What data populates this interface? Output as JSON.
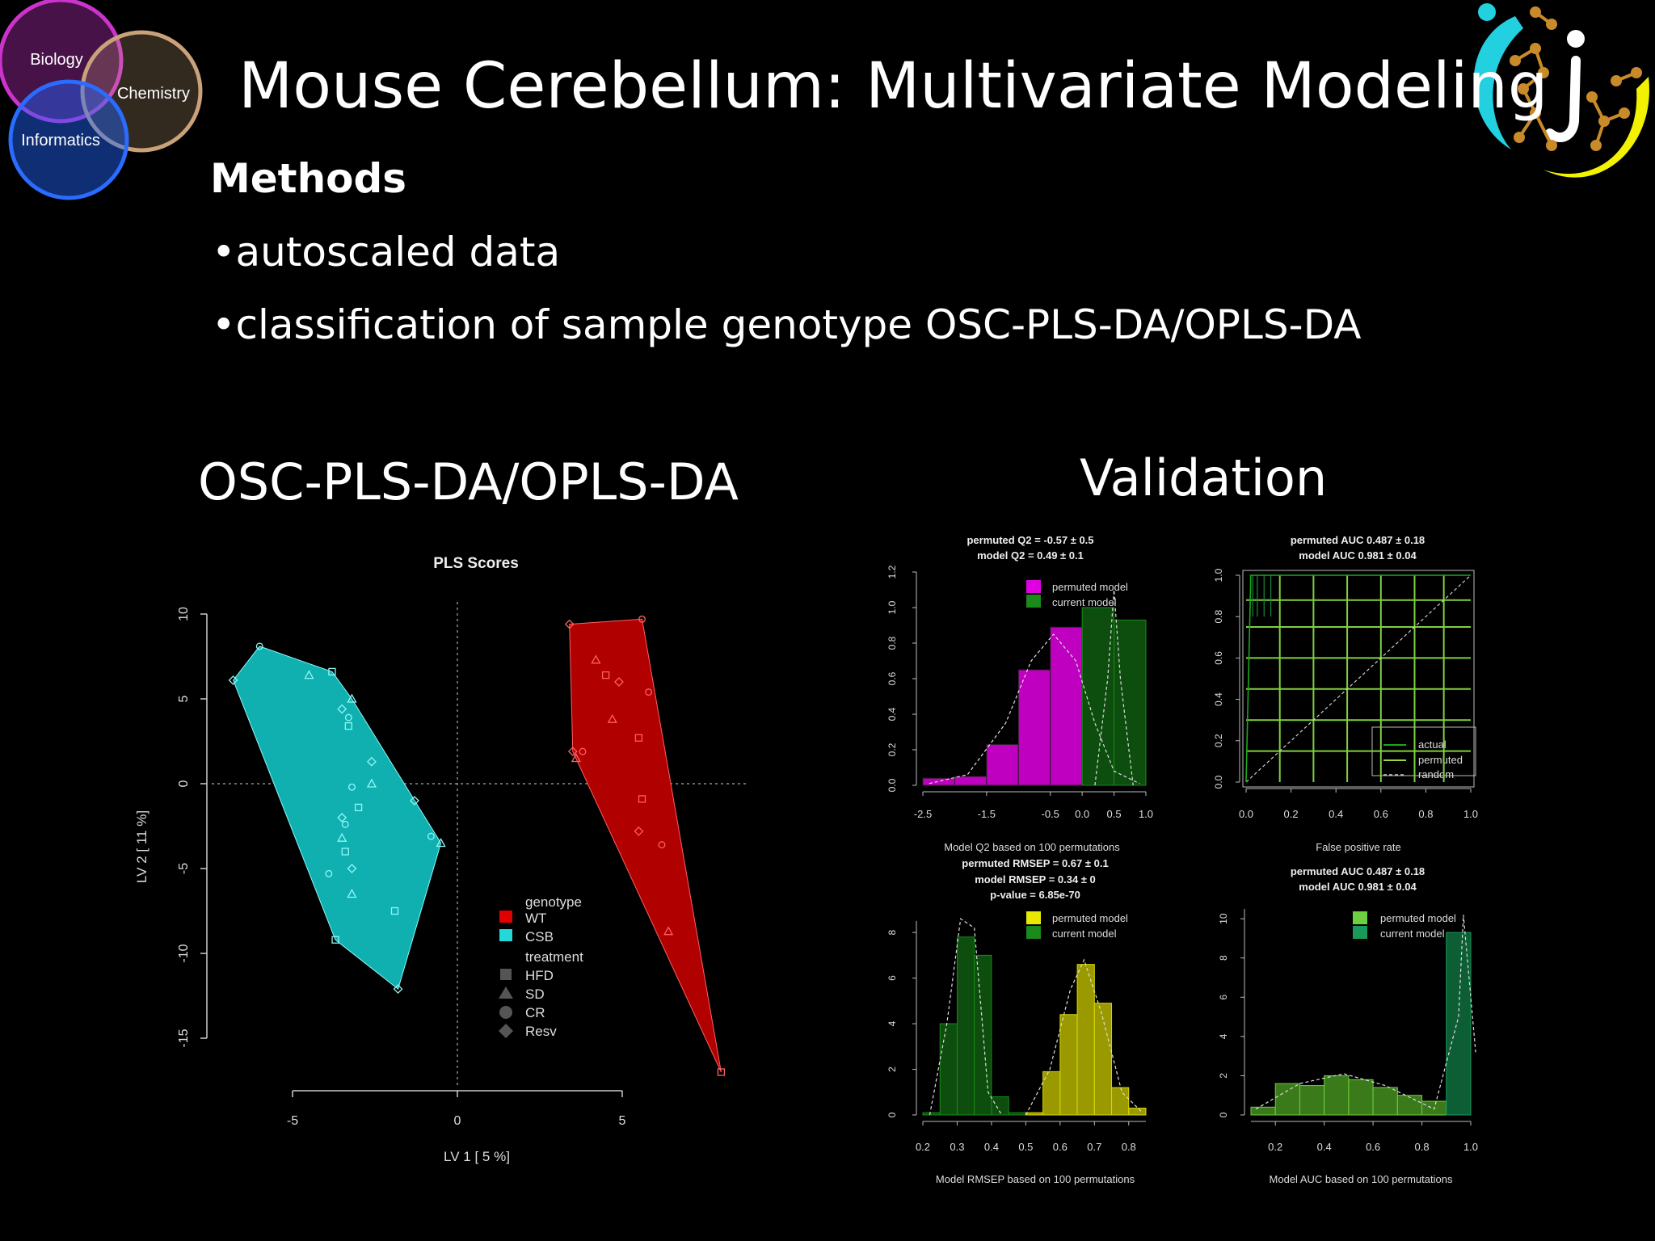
{
  "slide": {
    "title": "Mouse Cerebellum: Multivariate Modeling",
    "methods_heading": "Methods",
    "bullets": [
      "autoscaled data",
      "classification of sample genotype OSC-PLS-DA/OPLS-DA"
    ],
    "bullet_glyph": "•",
    "left_heading": "OSC-PLS-DA/OPLS-DA",
    "right_heading": "Validation"
  },
  "logo": {
    "circles": [
      "Biology",
      "Chemistry",
      "Informatics"
    ],
    "colors": {
      "biology": "#cc33cc",
      "chemistry": "#c9a27a",
      "informatics": "#2266ff"
    }
  },
  "scores": {
    "title": "PLS Scores",
    "xlabel": "LV 1 [ 5 %]",
    "ylabel": "LV 2 [ 11 %]",
    "xticks": [
      "-5",
      "0",
      "5"
    ],
    "yticks": [
      "10",
      "5",
      "0",
      "-5",
      "-10",
      "-15"
    ],
    "legend_title_genotype": "genotype",
    "legend_genotype": [
      {
        "label": "WT",
        "color": "#e00000"
      },
      {
        "label": "CSB",
        "color": "#22d8d8"
      }
    ],
    "legend_title_treatment": "treatment",
    "legend_treatment": [
      "HFD",
      "SD",
      "CR",
      "Resv"
    ],
    "colors": {
      "wt": "#b00000",
      "csb": "#10b0b0",
      "wt_point": "#ff6060",
      "csb_point": "#8ff8f8"
    }
  },
  "validation": {
    "q2": {
      "title_line1": "permuted Q2 = -0.57 ± 0.5",
      "title_line2": "model Q2 = 0.49 ± 0.1",
      "xlabel": "Model Q2 based on 100 permutations",
      "xticks": [
        "-2.5",
        "-1.5",
        "-0.5",
        "0.0",
        "0.5",
        "1.0"
      ],
      "yticks": [
        "0.0",
        "0.2",
        "0.4",
        "0.6",
        "0.8",
        "1.0",
        "1.2"
      ],
      "legend": [
        "permuted model",
        "current model"
      ]
    },
    "roc": {
      "title_line1": "permuted AUC 0.487 ± 0.18",
      "title_line2": "model AUC 0.981 ± 0.04",
      "xlabel": "False positive rate",
      "xticks": [
        "0.0",
        "0.2",
        "0.4",
        "0.6",
        "0.8",
        "1.0"
      ],
      "yticks": [
        "0.0",
        "0.2",
        "0.4",
        "0.6",
        "0.8",
        "1.0"
      ],
      "legend": [
        "actual",
        "permuted",
        "random"
      ]
    },
    "rmsep": {
      "title_line1": "permuted RMSEP = 0.67 ± 0.1",
      "title_line2": "model RMSEP = 0.34 ± 0",
      "title_line3": "p-value = 6.85e-70",
      "xlabel": "Model RMSEP based on 100 permutations",
      "xticks": [
        "0.2",
        "0.3",
        "0.4",
        "0.5",
        "0.6",
        "0.7",
        "0.8"
      ],
      "yticks": [
        "0",
        "2",
        "4",
        "6",
        "8"
      ],
      "legend": [
        "permuted model",
        "current model"
      ]
    },
    "auc": {
      "title_line1": "permuted AUC 0.487 ± 0.18",
      "title_line2": "model AUC 0.981 ± 0.04",
      "xlabel": "Model AUC based on 100 permutations",
      "xticks": [
        "0.2",
        "0.4",
        "0.6",
        "0.8",
        "1.0"
      ],
      "yticks": [
        "0",
        "2",
        "4",
        "6",
        "8",
        "10"
      ],
      "legend": [
        "permuted model",
        "current model"
      ]
    }
  },
  "chart_data": [
    {
      "type": "scatter",
      "title": "PLS Scores",
      "xlabel": "LV 1 [ 5 %]",
      "ylabel": "LV 2 [ 11 %]",
      "xlim": [
        -10,
        8
      ],
      "ylim": [
        -17,
        11
      ],
      "series": [
        {
          "name": "CSB",
          "points": [
            [
              -6.8,
              6.1
            ],
            [
              -6.0,
              8.1
            ],
            [
              -4.5,
              6.4
            ],
            [
              -3.8,
              6.6
            ],
            [
              -3.5,
              4.4
            ],
            [
              -3.3,
              3.9
            ],
            [
              -3.2,
              5.0
            ],
            [
              -3.3,
              3.4
            ],
            [
              -2.6,
              1.3
            ],
            [
              -3.2,
              -0.2
            ],
            [
              -2.6,
              0.0
            ],
            [
              -3.0,
              -1.4
            ],
            [
              -3.5,
              -2.0
            ],
            [
              -3.4,
              -2.4
            ],
            [
              -3.5,
              -3.2
            ],
            [
              -3.4,
              -4.0
            ],
            [
              -3.2,
              -5.0
            ],
            [
              -3.9,
              -5.3
            ],
            [
              -3.2,
              -6.5
            ],
            [
              -1.9,
              -7.5
            ],
            [
              -1.3,
              -1.0
            ],
            [
              -0.8,
              -3.1
            ],
            [
              -0.5,
              -3.5
            ],
            [
              -3.7,
              -9.2
            ],
            [
              -1.8,
              -12.1
            ]
          ]
        },
        {
          "name": "WT",
          "points": [
            [
              3.4,
              9.4
            ],
            [
              5.6,
              9.7
            ],
            [
              4.2,
              7.3
            ],
            [
              4.5,
              6.4
            ],
            [
              4.9,
              6.0
            ],
            [
              5.8,
              5.4
            ],
            [
              4.7,
              3.8
            ],
            [
              5.5,
              2.7
            ],
            [
              3.5,
              1.9
            ],
            [
              3.8,
              1.9
            ],
            [
              3.6,
              1.5
            ],
            [
              5.6,
              -0.9
            ],
            [
              5.5,
              -2.8
            ],
            [
              6.2,
              -3.6
            ],
            [
              6.4,
              -8.7
            ],
            [
              8.0,
              -17.0
            ]
          ]
        }
      ]
    },
    {
      "type": "bar",
      "title": "permuted Q2 = -0.57 ± 0.5 / model Q2 = 0.49 ± 0.1",
      "xlabel": "Model Q2 based on 100 permutations",
      "xlim": [
        -2.5,
        1.0
      ],
      "ylim": [
        0,
        1.2
      ],
      "series": [
        {
          "name": "permuted model",
          "x": [
            -2.5,
            -2.0,
            -1.5,
            -1.0,
            -0.5,
            0.0
          ],
          "values": [
            0.04,
            0.05,
            0.23,
            0.65,
            0.89,
            0.0
          ]
        },
        {
          "name": "current model",
          "x": [
            0.0,
            0.5
          ],
          "values": [
            1.0,
            0.93
          ]
        }
      ]
    },
    {
      "type": "line",
      "title": "permuted AUC 0.487 ± 0.18 / model AUC 0.981 ± 0.04",
      "xlabel": "False positive rate",
      "xlim": [
        0,
        1
      ],
      "ylim": [
        0,
        1
      ],
      "series": [
        {
          "name": "random",
          "x": [
            0,
            1
          ],
          "values": [
            0,
            1
          ]
        },
        {
          "name": "actual",
          "x": [
            0,
            0.02,
            1
          ],
          "values": [
            0,
            1,
            1
          ]
        }
      ]
    },
    {
      "type": "bar",
      "title": "permuted RMSEP = 0.67 ± 0.1 / model RMSEP = 0.34 ± 0 / p-value = 6.85e-70",
      "xlabel": "Model RMSEP based on 100 permutations",
      "xlim": [
        0.2,
        0.85
      ],
      "ylim": [
        0,
        8
      ],
      "series": [
        {
          "name": "current model",
          "x": [
            0.2,
            0.25,
            0.3,
            0.35,
            0.4,
            0.45
          ],
          "values": [
            0.1,
            4.0,
            7.8,
            7.0,
            0.8,
            0.1
          ]
        },
        {
          "name": "permuted model",
          "x": [
            0.5,
            0.55,
            0.6,
            0.65,
            0.7,
            0.75,
            0.8
          ],
          "values": [
            0.1,
            1.9,
            4.4,
            6.6,
            4.9,
            1.2,
            0.3
          ]
        }
      ]
    },
    {
      "type": "bar",
      "title": "permuted AUC 0.487 ± 0.18 / model AUC 0.981 ± 0.04",
      "xlabel": "Model AUC based on 100 permutations",
      "xlim": [
        0.1,
        1.0
      ],
      "ylim": [
        0,
        10
      ],
      "series": [
        {
          "name": "permuted model",
          "x": [
            0.1,
            0.2,
            0.3,
            0.4,
            0.5,
            0.6,
            0.7,
            0.8,
            0.9
          ],
          "values": [
            0.4,
            1.6,
            1.5,
            2.0,
            1.8,
            1.4,
            1.0,
            0.7,
            0.2
          ]
        },
        {
          "name": "current model",
          "x": [
            0.9
          ],
          "values": [
            9.3
          ]
        }
      ]
    }
  ]
}
